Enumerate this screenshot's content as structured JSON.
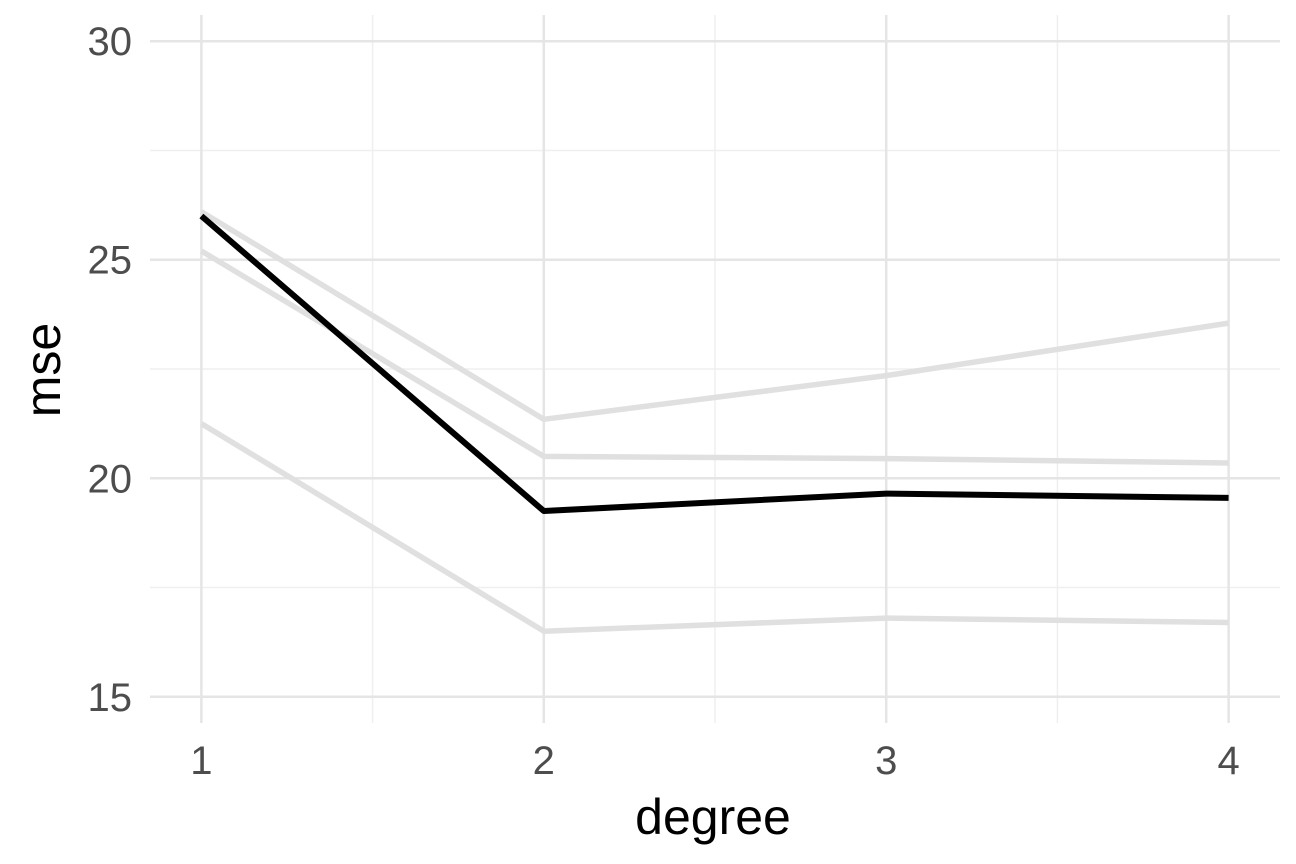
{
  "chart_data": {
    "type": "line",
    "xlabel": "degree",
    "ylabel": "mse",
    "x": [
      1,
      2,
      3,
      4
    ],
    "xlim": [
      0.85,
      4.15
    ],
    "ylim": [
      14.4,
      30.6
    ],
    "x_ticks": [
      1,
      2,
      3,
      4
    ],
    "x_tick_labels": [
      "1",
      "2",
      "3",
      "4"
    ],
    "y_ticks": [
      15,
      20,
      25,
      30
    ],
    "y_tick_labels": [
      "15",
      "20",
      "25",
      "30"
    ],
    "grid": true,
    "legend": "none",
    "series": [
      {
        "values": [
          25.2,
          20.5,
          20.45,
          20.35
        ],
        "color": "#e0e0e0"
      },
      {
        "values": [
          26.1,
          21.35,
          22.35,
          23.55
        ],
        "color": "#e0e0e0"
      },
      {
        "values": [
          21.25,
          16.5,
          16.8,
          16.7
        ],
        "color": "#e0e0e0"
      },
      {
        "values": [
          26.0,
          19.25,
          19.65,
          19.55
        ],
        "color": "#000000"
      }
    ]
  }
}
